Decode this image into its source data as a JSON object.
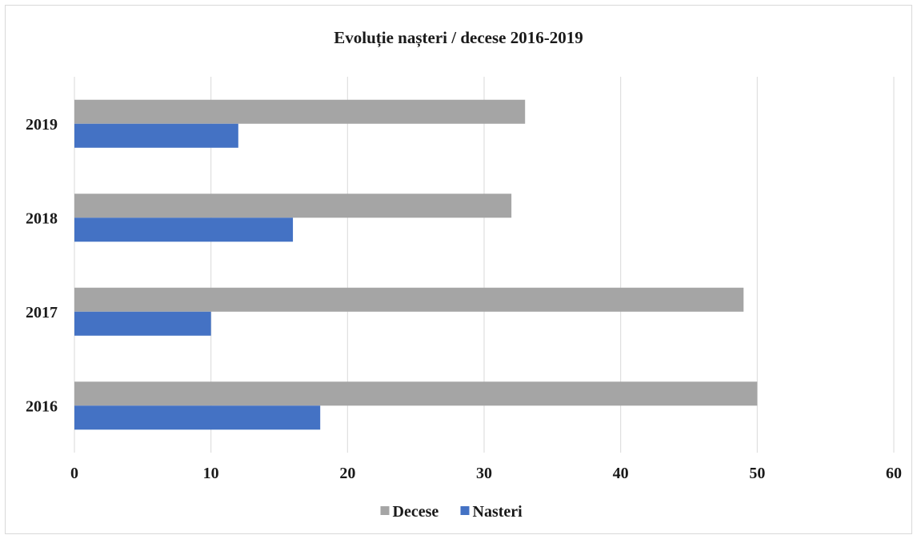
{
  "chart_data": {
    "type": "bar",
    "orientation": "horizontal",
    "title": "Evoluție nașteri / decese 2016-2019",
    "categories": [
      "2016",
      "2017",
      "2018",
      "2019"
    ],
    "series": [
      {
        "name": "Decese",
        "values": [
          50,
          49,
          32,
          33
        ],
        "color": "#a5a5a5"
      },
      {
        "name": "Nasteri",
        "values": [
          18,
          10,
          16,
          12
        ],
        "color": "#4472c4"
      }
    ],
    "xlim": [
      0,
      60
    ],
    "x_ticks": [
      "0",
      "10",
      "20",
      "30",
      "40",
      "50",
      "60"
    ],
    "xlabel": "",
    "ylabel": "",
    "grid": "vertical",
    "legend": "bottom"
  }
}
